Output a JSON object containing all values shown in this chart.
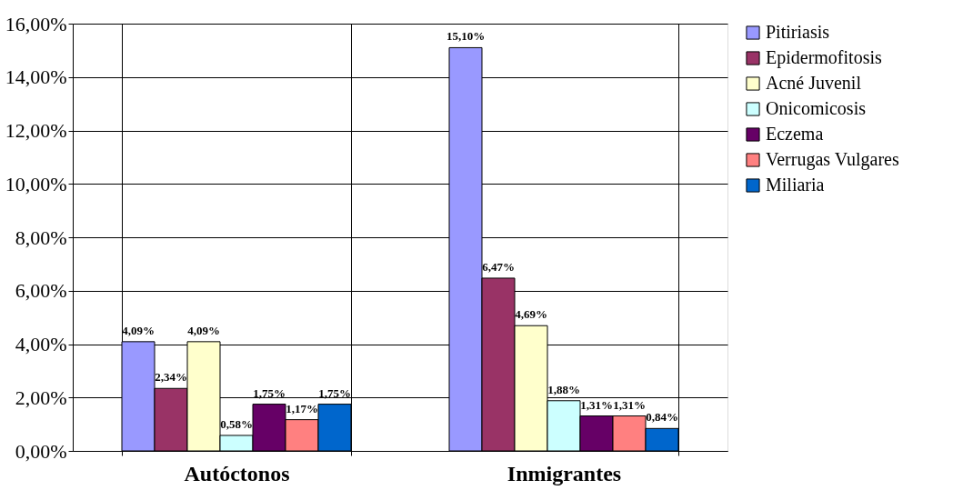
{
  "chart_data": {
    "type": "bar",
    "categories": [
      "Autóctonos",
      "Inmigrantes"
    ],
    "series": [
      {
        "name": "Pitiriasis",
        "color": "#9999ff",
        "values": [
          4.09,
          15.1
        ],
        "value_labels": [
          "4,09%",
          "15,10%"
        ]
      },
      {
        "name": "Epidermofitosis",
        "color": "#993366",
        "values": [
          2.34,
          6.47
        ],
        "value_labels": [
          "2,34%",
          "6,47%"
        ]
      },
      {
        "name": "Acné Juvenil",
        "color": "#ffffcc",
        "values": [
          4.09,
          4.69
        ],
        "value_labels": [
          "4,09%",
          "4,69%"
        ]
      },
      {
        "name": "Onicomicosis",
        "color": "#ccffff",
        "values": [
          0.58,
          1.88
        ],
        "value_labels": [
          "0,58%",
          "1,88%"
        ]
      },
      {
        "name": "Eczema",
        "color": "#660066",
        "values": [
          1.75,
          1.31
        ],
        "value_labels": [
          "1,75%",
          "1,31%"
        ]
      },
      {
        "name": "Verrugas Vulgares",
        "color": "#ff8080",
        "values": [
          1.17,
          1.31
        ],
        "value_labels": [
          "1,17%",
          "1,31%"
        ]
      },
      {
        "name": "Miliaria",
        "color": "#0066cc",
        "values": [
          1.75,
          0.84
        ],
        "value_labels": [
          "1,75%",
          "0,84%"
        ]
      }
    ],
    "ylim": [
      0,
      16
    ],
    "yticks": [
      {
        "value": 0,
        "label": "0,00%"
      },
      {
        "value": 2,
        "label": "2,00%"
      },
      {
        "value": 4,
        "label": "4,00%"
      },
      {
        "value": 6,
        "label": "6,00%"
      },
      {
        "value": 8,
        "label": "8,00%"
      },
      {
        "value": 10,
        "label": "10,00%"
      },
      {
        "value": 12,
        "label": "12,00%"
      },
      {
        "value": 14,
        "label": "14,00%"
      },
      {
        "value": 16,
        "label": "16,00%"
      }
    ],
    "grid": "y",
    "legend": "right"
  }
}
